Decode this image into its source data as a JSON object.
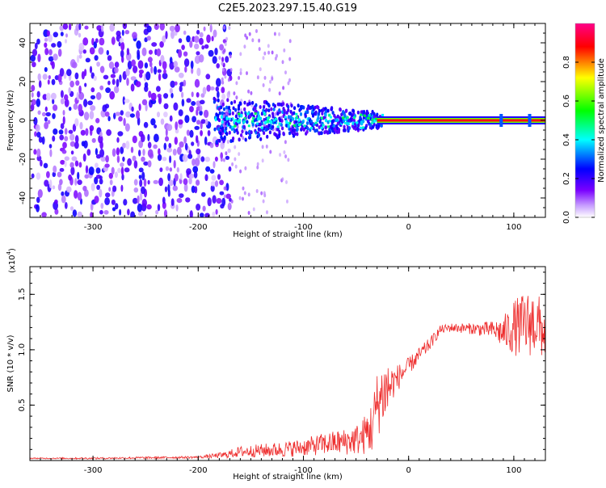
{
  "title": "C2E5.2023.297.15.40.G19",
  "colors": {
    "snr_line": "#ee2e2e",
    "spectrum_scale": [
      "#ffffff",
      "#7a00ff",
      "#0000ff",
      "#00ffff",
      "#00ff00",
      "#ffff00",
      "#ff0000",
      "#ff00aa"
    ]
  },
  "chart_data": [
    {
      "type": "heatmap",
      "title": "",
      "xlabel": "Height of straight line (km)",
      "ylabel": "Frequency (Hz)",
      "xlim": [
        -360,
        130
      ],
      "ylim": [
        -50,
        50
      ],
      "x_ticks": [
        -300,
        -200,
        -100,
        0,
        100
      ],
      "y_ticks": [
        -40,
        -20,
        0,
        20,
        40
      ],
      "colorbar": {
        "label": "Normalized spectral amplitude",
        "range": [
          0.0,
          1.0
        ],
        "ticks": [
          0.0,
          0.2,
          0.4,
          0.6,
          0.8
        ]
      },
      "regions": [
        {
          "x_range": [
            -360,
            -185
          ],
          "freq_spread_hz": 50,
          "amplitude": "0.05-0.3 (diffuse noise)"
        },
        {
          "x_range": [
            -185,
            -30
          ],
          "freq_spread_hz": 10,
          "amplitude": "0.2-0.5"
        },
        {
          "x_range": [
            -30,
            130
          ],
          "freq_spread_hz": 1.5,
          "amplitude": "0.8-1.0 (carrier line at 0 Hz)"
        }
      ]
    },
    {
      "type": "line",
      "title": "",
      "xlabel": "Height of straight line (km)",
      "ylabel": "SNR (10 * v/v)",
      "y_scale_label": "(x10",
      "y_scale_exp": "4",
      "xlim": [
        -360,
        130
      ],
      "ylim": [
        0,
        17500
      ],
      "x_ticks": [
        -300,
        -200,
        -100,
        0,
        100
      ],
      "y_ticks": [
        5000,
        10000,
        15000
      ],
      "y_tick_labels": [
        "0.5",
        "1.0",
        "1.5"
      ],
      "series": [
        {
          "x": [
            -360,
            -300,
            -250,
            -200,
            -175,
            -160,
            -140,
            -120,
            -100,
            -80,
            -60,
            -45,
            -35,
            -30,
            -25,
            -20,
            -15,
            -10,
            -5,
            0,
            10,
            20,
            30,
            40,
            60,
            80,
            90,
            100,
            110,
            120,
            130
          ],
          "y": [
            200,
            200,
            250,
            300,
            500,
            800,
            900,
            1000,
            1200,
            1500,
            1700,
            2000,
            3000,
            5000,
            6000,
            6500,
            7000,
            7500,
            8000,
            8500,
            9500,
            10500,
            11800,
            12000,
            11900,
            11800,
            11500,
            12000,
            12200,
            12500,
            11500
          ],
          "noise": [
            50,
            80,
            100,
            100,
            300,
            500,
            600,
            700,
            800,
            1000,
            1200,
            1500,
            2500,
            3000,
            3000,
            3000,
            1500,
            1200,
            1000,
            800,
            700,
            600,
            400,
            400,
            500,
            800,
            1500,
            2500,
            3000,
            3000,
            2500
          ]
        }
      ]
    }
  ]
}
